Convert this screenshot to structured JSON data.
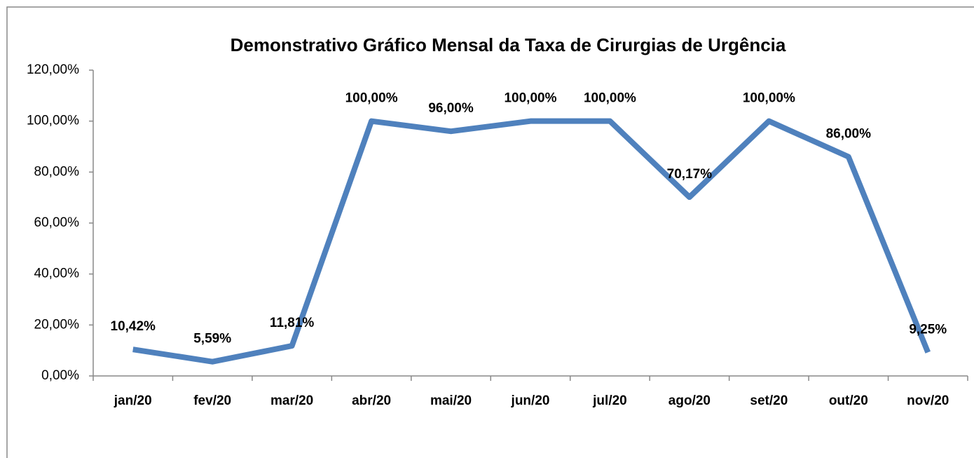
{
  "chart_data": {
    "type": "line",
    "title": "Demonstrativo Gráfico Mensal da Taxa de Cirurgias de Urgência",
    "categories": [
      "jan/20",
      "fev/20",
      "mar/20",
      "abr/20",
      "mai/20",
      "jun/20",
      "jul/20",
      "ago/20",
      "set/20",
      "out/20",
      "nov/20"
    ],
    "series": [
      {
        "name": "Taxa de Cirurgias de Urgência",
        "color": "#4f81bd",
        "values": [
          10.42,
          5.59,
          11.81,
          100,
          96,
          100,
          100,
          70.17,
          100,
          86,
          9.25
        ],
        "value_labels": [
          "10,42%",
          "5,59%",
          "11,81%",
          "100,00%",
          "96,00%",
          "100,00%",
          "100,00%",
          "70,17%",
          "100,00%",
          "86,00%",
          "9,25%"
        ]
      }
    ],
    "ylim": [
      0,
      120
    ],
    "yticks": [
      {
        "value": 0,
        "label": "0,00%"
      },
      {
        "value": 20,
        "label": "20,00%"
      },
      {
        "value": 40,
        "label": "40,00%"
      },
      {
        "value": 60,
        "label": "60,00%"
      },
      {
        "value": 80,
        "label": "80,00%"
      },
      {
        "value": 100,
        "label": "100,00%"
      },
      {
        "value": 120,
        "label": "120,00%"
      }
    ],
    "grid": false
  }
}
